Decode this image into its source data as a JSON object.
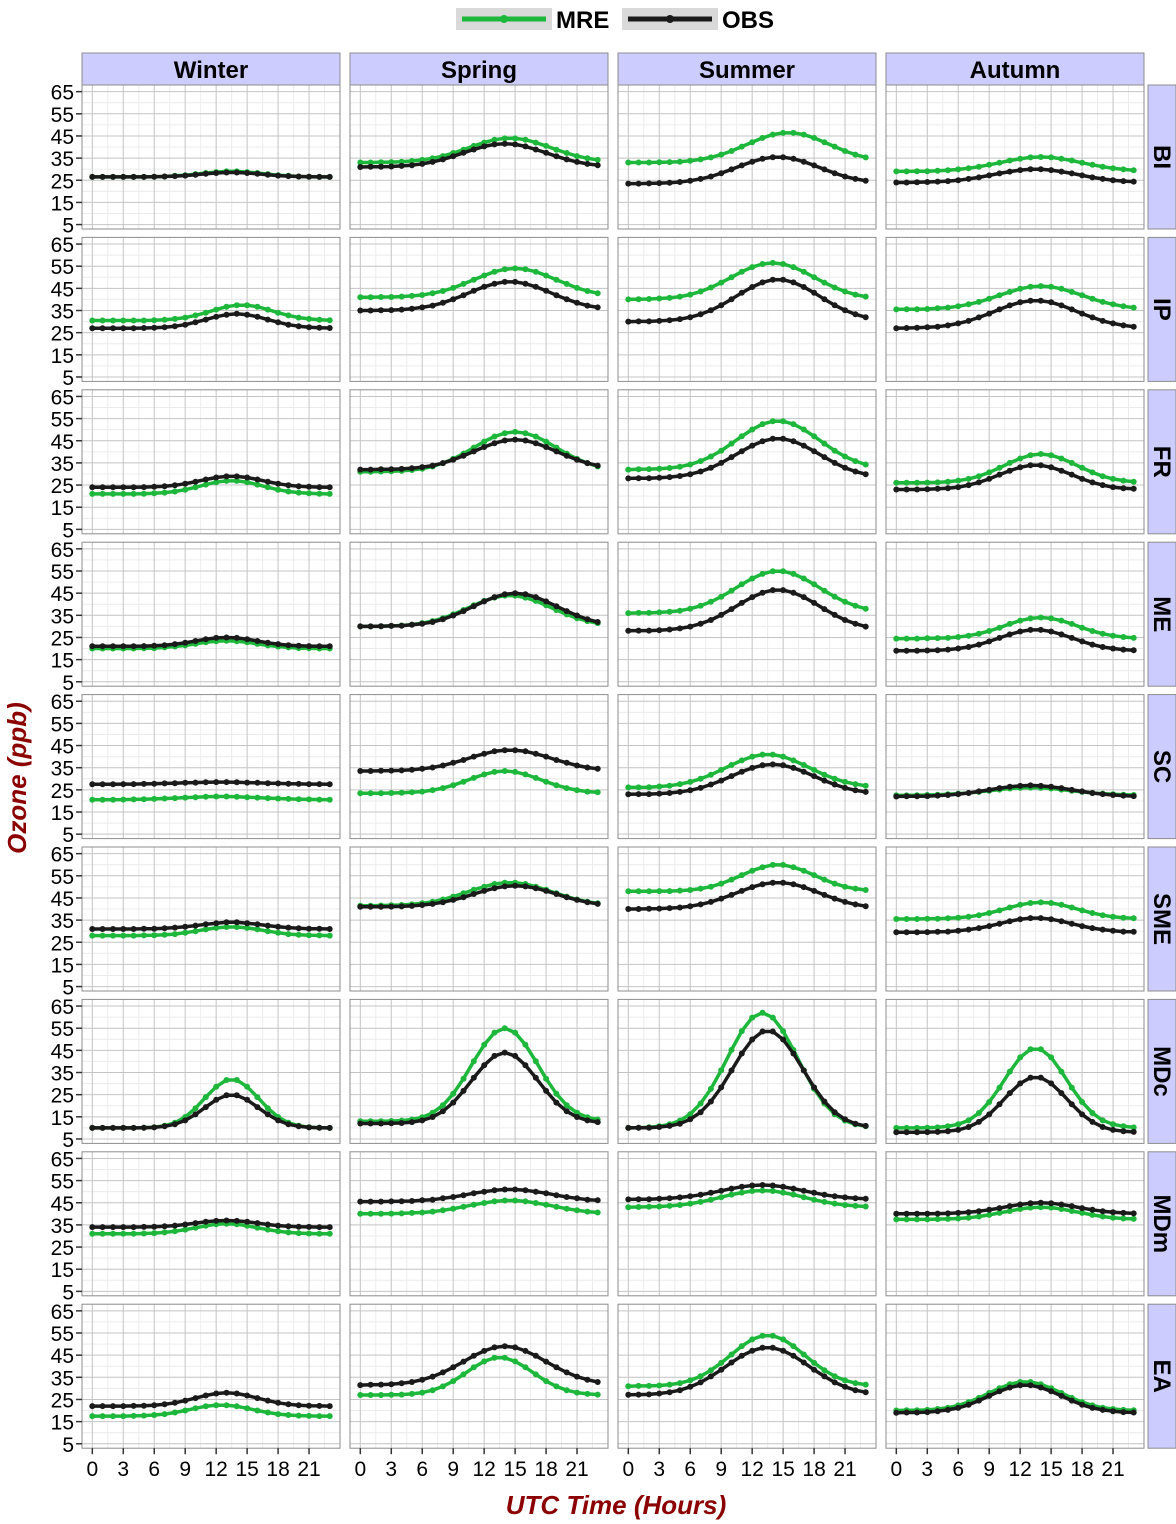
{
  "chart_data": {
    "type": "line",
    "legend": {
      "placement": "top",
      "items": [
        {
          "name": "MRE",
          "color": "#1db83b"
        },
        {
          "name": "OBS",
          "color": "#1a1a1a"
        }
      ]
    },
    "xlabel": "UTC Time (Hours)",
    "ylabel": "Ozone (ppb)",
    "label_color": "#8b0000",
    "strip_color": "#ccccff",
    "x_ticks": [
      0,
      3,
      6,
      9,
      12,
      15,
      18,
      21
    ],
    "y_ticks": [
      5,
      15,
      25,
      35,
      45,
      55,
      65
    ],
    "xlim": [
      -1,
      24
    ],
    "ylim": [
      3,
      68
    ],
    "grid": true,
    "columns": [
      "Winter",
      "Spring",
      "Summer",
      "Autumn"
    ],
    "rows": [
      "BI",
      "IP",
      "FR",
      "ME",
      "SC",
      "SME",
      "MDc",
      "MDm",
      "EA"
    ],
    "shape_params": {
      "BI": {
        "Winter": {
          "MRE": [
            26.5,
            29.0,
            13.5,
            3
          ],
          "OBS": [
            26.5,
            28.5,
            13.5,
            3
          ]
        },
        "Spring": {
          "MRE": [
            33,
            44,
            14.5,
            4
          ],
          "OBS": [
            31,
            41.5,
            14,
            4
          ]
        },
        "Summer": {
          "MRE": [
            33,
            46.5,
            15.5,
            4
          ],
          "OBS": [
            23.5,
            35.5,
            14.5,
            4
          ]
        },
        "Autumn": {
          "MRE": [
            29,
            35.5,
            14,
            4
          ],
          "OBS": [
            24,
            30,
            13.5,
            4
          ]
        }
      },
      "IP": {
        "Winter": {
          "MRE": [
            30.5,
            37.5,
            14.5,
            3
          ],
          "OBS": [
            27,
            33.5,
            14,
            3
          ]
        },
        "Spring": {
          "MRE": [
            41,
            54,
            15,
            4
          ],
          "OBS": [
            35,
            48,
            14.5,
            4
          ]
        },
        "Summer": {
          "MRE": [
            40,
            56.5,
            14,
            4
          ],
          "OBS": [
            30,
            49,
            14.5,
            4
          ]
        },
        "Autumn": {
          "MRE": [
            35.5,
            46,
            14,
            4
          ],
          "OBS": [
            27,
            39.5,
            13.5,
            4
          ]
        }
      },
      "FR": {
        "Winter": {
          "MRE": [
            21,
            27,
            13.5,
            3
          ],
          "OBS": [
            24,
            29,
            13.5,
            3
          ]
        },
        "Spring": {
          "MRE": [
            31,
            49,
            15,
            4
          ],
          "OBS": [
            32,
            45.5,
            15,
            4
          ]
        },
        "Summer": {
          "MRE": [
            32,
            54,
            14.5,
            4
          ],
          "OBS": [
            28,
            46,
            14.5,
            4
          ]
        },
        "Autumn": {
          "MRE": [
            26,
            39,
            14,
            3.5
          ],
          "OBS": [
            23,
            34,
            13.5,
            3.5
          ]
        }
      },
      "ME": {
        "Winter": {
          "MRE": [
            20,
            23.5,
            13,
            3
          ],
          "OBS": [
            21,
            25,
            13,
            3
          ]
        },
        "Spring": {
          "MRE": [
            30,
            44,
            14.5,
            4
          ],
          "OBS": [
            30,
            45,
            15,
            4
          ]
        },
        "Summer": {
          "MRE": [
            36,
            55,
            14.5,
            4
          ],
          "OBS": [
            28,
            46.5,
            14.5,
            4
          ]
        },
        "Autumn": {
          "MRE": [
            24.5,
            34,
            14,
            3.5
          ],
          "OBS": [
            19,
            28.5,
            13.5,
            3.5
          ]
        }
      },
      "SC": {
        "Winter": {
          "MRE": [
            20.5,
            22,
            12.5,
            4
          ],
          "OBS": [
            27.5,
            28.5,
            12.5,
            4
          ]
        },
        "Spring": {
          "MRE": [
            23.5,
            33.5,
            14,
            3.5
          ],
          "OBS": [
            33.5,
            43,
            14.5,
            4
          ]
        },
        "Summer": {
          "MRE": [
            26,
            41,
            13.5,
            4
          ],
          "OBS": [
            23,
            36.5,
            14,
            4
          ]
        },
        "Autumn": {
          "MRE": [
            22.5,
            26,
            13,
            4
          ],
          "OBS": [
            22,
            27,
            13,
            4
          ]
        }
      },
      "SME": {
        "Winter": {
          "MRE": [
            28,
            32,
            13.5,
            3
          ],
          "OBS": [
            31,
            34,
            13.5,
            3
          ]
        },
        "Spring": {
          "MRE": [
            41.5,
            52,
            14.5,
            4
          ],
          "OBS": [
            41,
            50.5,
            15,
            4
          ]
        },
        "Summer": {
          "MRE": [
            48,
            60,
            14.5,
            3.5
          ],
          "OBS": [
            40,
            52,
            14.5,
            4
          ]
        },
        "Autumn": {
          "MRE": [
            35.5,
            43,
            14,
            3.5
          ],
          "OBS": [
            29.5,
            36,
            13.5,
            3.5
          ]
        }
      },
      "MDc": {
        "Winter": {
          "MRE": [
            10,
            32,
            13.5,
            2.6
          ],
          "OBS": [
            10,
            25,
            13.5,
            2.6
          ]
        },
        "Spring": {
          "MRE": [
            13,
            55,
            14,
            3.2
          ],
          "OBS": [
            12,
            44,
            14,
            3.2
          ]
        },
        "Summer": {
          "MRE": [
            10,
            62,
            13,
            3.4
          ],
          "OBS": [
            10,
            54,
            13.5,
            3.4
          ]
        },
        "Autumn": {
          "MRE": [
            10,
            46,
            13.5,
            3
          ],
          "OBS": [
            8,
            33,
            13.5,
            3
          ]
        }
      },
      "MDm": {
        "Winter": {
          "MRE": [
            31,
            35.5,
            13,
            3
          ],
          "OBS": [
            34,
            37,
            13,
            3
          ]
        },
        "Spring": {
          "MRE": [
            40,
            46,
            14.5,
            4
          ],
          "OBS": [
            45.5,
            51,
            14.5,
            4
          ]
        },
        "Summer": {
          "MRE": [
            43,
            50.5,
            13,
            4
          ],
          "OBS": [
            46.5,
            53,
            13,
            4
          ]
        },
        "Autumn": {
          "MRE": [
            37.5,
            43,
            14,
            3.5
          ],
          "OBS": [
            40,
            45,
            14,
            3.5
          ]
        }
      },
      "EA": {
        "Winter": {
          "MRE": [
            17.5,
            22.5,
            12.5,
            3
          ],
          "OBS": [
            22,
            28,
            13,
            3
          ]
        },
        "Spring": {
          "MRE": [
            27,
            44,
            13.5,
            3.2
          ],
          "OBS": [
            31.5,
            49,
            14,
            4
          ]
        },
        "Summer": {
          "MRE": [
            31,
            54,
            13.5,
            3.6
          ],
          "OBS": [
            27,
            48.5,
            13.5,
            4
          ]
        },
        "Autumn": {
          "MRE": [
            20,
            33,
            12.5,
            3.5
          ],
          "OBS": [
            19,
            31.5,
            12.5,
            3.5
          ]
        }
      }
    }
  }
}
